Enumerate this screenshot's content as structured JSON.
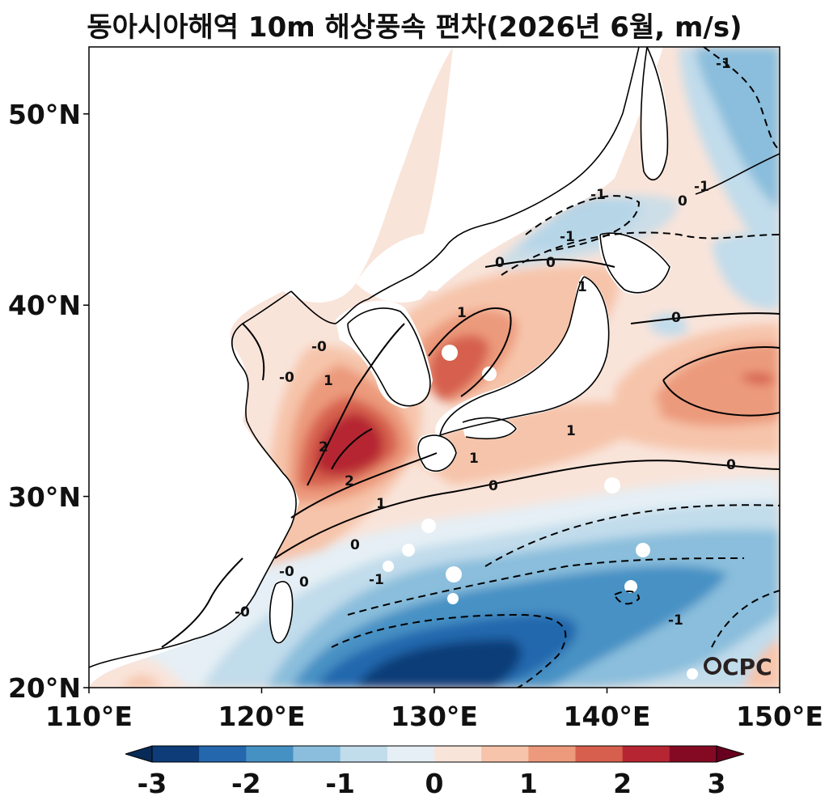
{
  "title": "동아시아해역 10m 해상풍속 편차(2026년 6월, m/s)",
  "map": {
    "lon_range": [
      110,
      150
    ],
    "lat_range": [
      20,
      53.5
    ],
    "x_ticks": [
      "110°E",
      "120°E",
      "130°E",
      "140°E",
      "150°E"
    ],
    "y_ticks": [
      "20°N",
      "30°N",
      "40°N",
      "50°N"
    ]
  },
  "colorbar": {
    "labels": [
      "-3",
      "-2",
      "-1",
      "0",
      "1",
      "2",
      "3"
    ],
    "colors": [
      "#0d3c78",
      "#2467ad",
      "#4691c4",
      "#8abedc",
      "#c1dceb",
      "#e5eff5",
      "#f9e4da",
      "#f6c4aa",
      "#ec9a7b",
      "#d6604d",
      "#b62632",
      "#840a24"
    ],
    "under_color": "#082a56",
    "over_color": "#67001f"
  },
  "contour_labels": [
    "1",
    "0",
    "-1",
    "2",
    "-0"
  ],
  "logo": {
    "text": "CPC"
  }
}
